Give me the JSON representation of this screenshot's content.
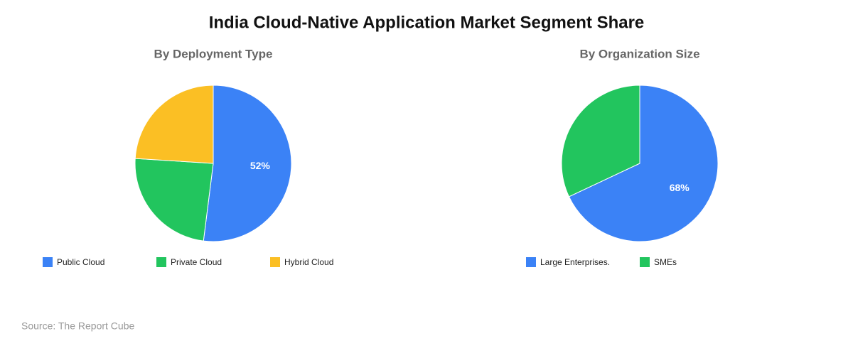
{
  "title": "India Cloud-Native Application Market Segment Share",
  "source": "Source: The Report Cube",
  "chart_data": [
    {
      "type": "pie",
      "title": "By Deployment Type",
      "categories": [
        "Public Cloud",
        "Private Cloud",
        "Hybrid Cloud"
      ],
      "values": [
        52,
        24,
        24
      ],
      "value_labels": [
        "52%",
        null,
        null
      ],
      "colors": [
        "#3b82f6",
        "#22c55e",
        "#fbbf24"
      ]
    },
    {
      "type": "pie",
      "title": "By Organization Size",
      "categories": [
        "Large Enterprises.",
        "SMEs"
      ],
      "values": [
        68,
        32
      ],
      "value_labels": [
        "68%",
        null
      ],
      "colors": [
        "#3b82f6",
        "#22c55e"
      ]
    }
  ]
}
